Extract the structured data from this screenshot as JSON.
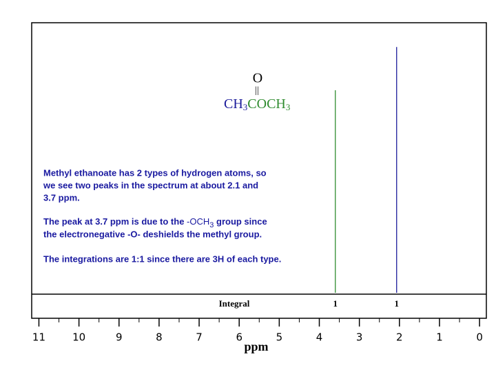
{
  "chart_data": {
    "type": "spectrum",
    "xlabel": "ppm",
    "xlim": [
      11.18,
      -0.17
    ],
    "xticks": [
      11,
      10,
      9,
      8,
      7,
      6,
      5,
      4,
      3,
      2,
      1,
      0
    ],
    "xminor_ticks": [
      10.5,
      9.5,
      8.5,
      7.5,
      6.5,
      5.5,
      4.5,
      3.5,
      2.5,
      1.5,
      0.5
    ],
    "ylim": [
      0,
      1
    ],
    "integral_label": "Integral",
    "peaks": [
      {
        "x": 3.6,
        "height": 0.75,
        "color": "#2e8b2e",
        "integral": 1
      },
      {
        "x": 2.07,
        "height": 0.91,
        "color": "#1a1a9a",
        "integral": 1
      }
    ],
    "structure": {
      "top": "O",
      "bond": "||",
      "left": "CH",
      "left_sub": "3",
      "left_color": "#1a1a9a",
      "right": "COCH",
      "right_sub": "3",
      "right_color": "#2e8b2e"
    },
    "paragraphs": [
      [
        "Methyl ethanoate has 2 types of hydrogen atoms, so",
        "we see two peaks in the spectrum at about 2.1 and",
        "3.7 ppm."
      ],
      [
        "The peak at 3.7 ppm is due to the ",
        "-OCH",
        "3",
        " group since",
        "the electronegative -O- deshields the methyl group."
      ],
      [
        "The integrations are 1:1 since there are 3H of each type."
      ]
    ],
    "text_color": "#1a1aa0"
  }
}
